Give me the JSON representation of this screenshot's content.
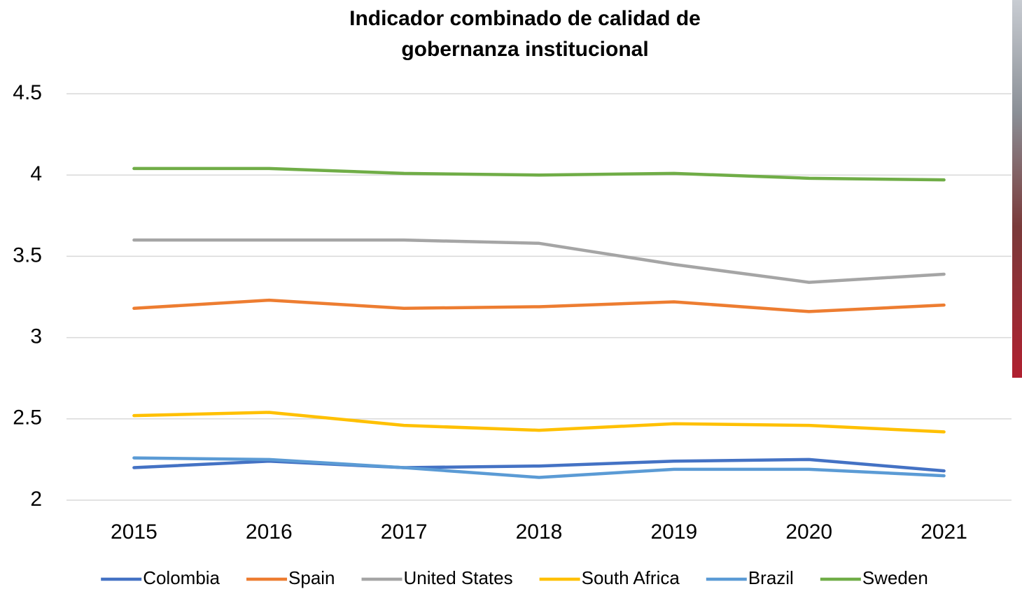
{
  "chart_data": {
    "type": "line",
    "title": [
      "Indicador combinado de calidad de",
      "gobernanza institucional"
    ],
    "categories": [
      "2015",
      "2016",
      "2017",
      "2018",
      "2019",
      "2020",
      "2021"
    ],
    "series": [
      {
        "name": "Colombia",
        "color": "#4472c4",
        "values": [
          2.2,
          2.24,
          2.2,
          2.21,
          2.24,
          2.25,
          2.18
        ]
      },
      {
        "name": "Spain",
        "color": "#ed7d31",
        "values": [
          3.18,
          3.23,
          3.18,
          3.19,
          3.22,
          3.16,
          3.2
        ]
      },
      {
        "name": "United States",
        "color": "#a5a5a5",
        "values": [
          3.6,
          3.6,
          3.6,
          3.58,
          3.45,
          3.34,
          3.39
        ]
      },
      {
        "name": "South Africa",
        "color": "#ffc000",
        "values": [
          2.52,
          2.54,
          2.46,
          2.43,
          2.47,
          2.46,
          2.42
        ]
      },
      {
        "name": "Brazil",
        "color": "#5b9bd5",
        "values": [
          2.26,
          2.25,
          2.2,
          2.14,
          2.19,
          2.19,
          2.15
        ]
      },
      {
        "name": "Sweden",
        "color": "#70ad47",
        "values": [
          4.04,
          4.04,
          4.01,
          4.0,
          4.01,
          3.98,
          3.97
        ]
      }
    ],
    "ylim": [
      2,
      4.5
    ],
    "yticks": [
      2,
      2.5,
      3,
      3.5,
      4,
      4.5
    ],
    "grid": true,
    "legend": "bottom"
  }
}
